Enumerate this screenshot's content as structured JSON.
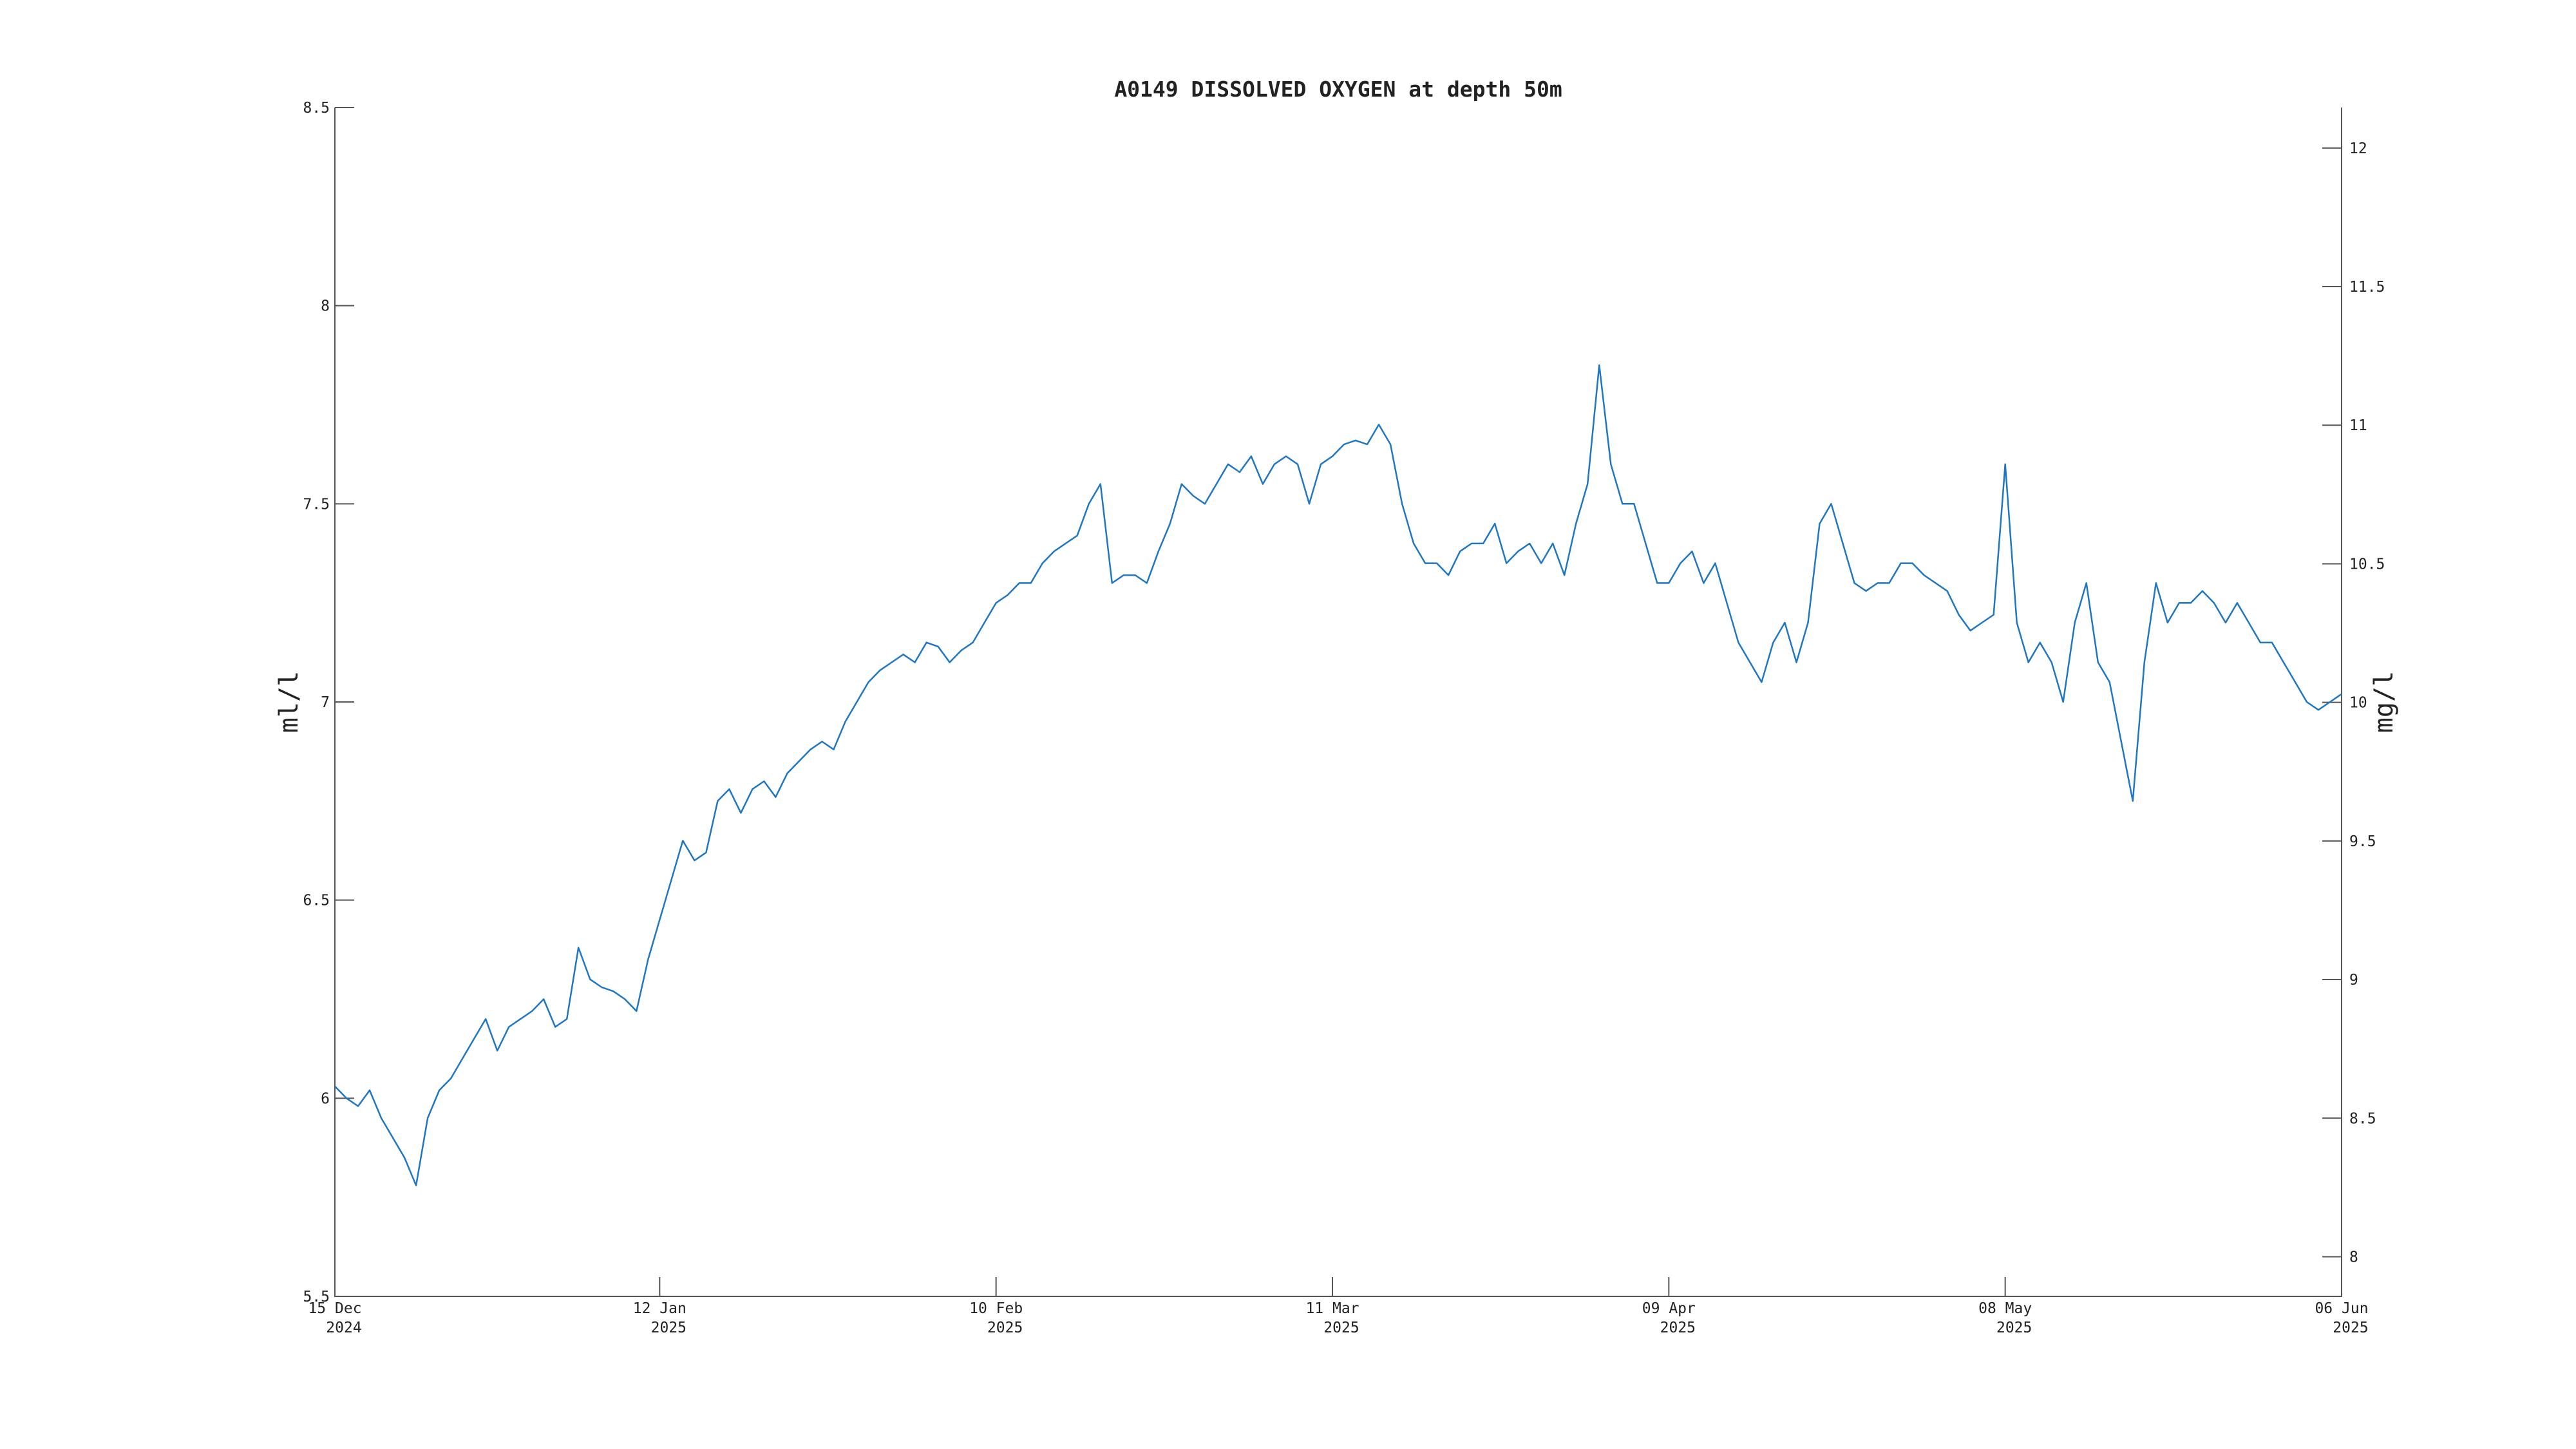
{
  "chart_data": {
    "type": "line",
    "title": "A0149 DISSOLVED OXYGEN at depth 50m",
    "ylabel": "ml/l",
    "y2label": "mg/l",
    "color": "#1f77c4",
    "xlim": [
      "2024-12-15",
      "2025-06-06"
    ],
    "xticks": [
      {
        "value": "2024-12-15",
        "label": [
          "15 Dec",
          "2024"
        ]
      },
      {
        "value": "2025-01-12",
        "label": [
          "12 Jan",
          "2025"
        ]
      },
      {
        "value": "2025-02-10",
        "label": [
          "10 Feb",
          "2025"
        ]
      },
      {
        "value": "2025-03-11",
        "label": [
          "11 Mar",
          "2025"
        ]
      },
      {
        "value": "2025-04-09",
        "label": [
          "09 Apr",
          "2025"
        ]
      },
      {
        "value": "2025-05-08",
        "label": [
          "08 May",
          "2025"
        ]
      },
      {
        "value": "2025-06-06",
        "label": [
          "06 Jun",
          "2025"
        ]
      }
    ],
    "ylim": [
      5.5,
      8.5
    ],
    "yticks": [
      5.5,
      6,
      6.5,
      7,
      7.5,
      8,
      8.5
    ],
    "y2lim": [
      7.857,
      12.146
    ],
    "y2ticks": [
      8,
      8.5,
      9,
      9.5,
      10,
      10.5,
      11,
      11.5,
      12
    ],
    "x": [
      "2024-12-15",
      "2024-12-16",
      "2024-12-17",
      "2024-12-18",
      "2024-12-19",
      "2024-12-20",
      "2024-12-21",
      "2024-12-22",
      "2024-12-23",
      "2024-12-24",
      "2024-12-25",
      "2024-12-26",
      "2024-12-27",
      "2024-12-28",
      "2024-12-29",
      "2024-12-30",
      "2024-12-31",
      "2025-01-01",
      "2025-01-02",
      "2025-01-03",
      "2025-01-04",
      "2025-01-05",
      "2025-01-06",
      "2025-01-07",
      "2025-01-08",
      "2025-01-09",
      "2025-01-10",
      "2025-01-11",
      "2025-01-12",
      "2025-01-13",
      "2025-01-14",
      "2025-01-15",
      "2025-01-16",
      "2025-01-17",
      "2025-01-18",
      "2025-01-19",
      "2025-01-20",
      "2025-01-21",
      "2025-01-22",
      "2025-01-23",
      "2025-01-24",
      "2025-01-25",
      "2025-01-26",
      "2025-01-27",
      "2025-01-28",
      "2025-01-29",
      "2025-01-30",
      "2025-01-31",
      "2025-02-01",
      "2025-02-02",
      "2025-02-03",
      "2025-02-04",
      "2025-02-05",
      "2025-02-06",
      "2025-02-07",
      "2025-02-08",
      "2025-02-09",
      "2025-02-10",
      "2025-02-11",
      "2025-02-12",
      "2025-02-13",
      "2025-02-14",
      "2025-02-15",
      "2025-02-16",
      "2025-02-17",
      "2025-02-18",
      "2025-02-19",
      "2025-02-20",
      "2025-02-21",
      "2025-02-22",
      "2025-02-23",
      "2025-02-24",
      "2025-02-25",
      "2025-02-26",
      "2025-02-27",
      "2025-02-28",
      "2025-03-01",
      "2025-03-02",
      "2025-03-03",
      "2025-03-04",
      "2025-03-05",
      "2025-03-06",
      "2025-03-07",
      "2025-03-08",
      "2025-03-09",
      "2025-03-10",
      "2025-03-11",
      "2025-03-12",
      "2025-03-13",
      "2025-03-14",
      "2025-03-15",
      "2025-03-16",
      "2025-03-17",
      "2025-03-18",
      "2025-03-19",
      "2025-03-20",
      "2025-03-21",
      "2025-03-22",
      "2025-03-23",
      "2025-03-24",
      "2025-03-25",
      "2025-03-26",
      "2025-03-27",
      "2025-03-28",
      "2025-03-29",
      "2025-03-30",
      "2025-03-31",
      "2025-04-01",
      "2025-04-02",
      "2025-04-03",
      "2025-04-04",
      "2025-04-05",
      "2025-04-06",
      "2025-04-07",
      "2025-04-08",
      "2025-04-09",
      "2025-04-10",
      "2025-04-11",
      "2025-04-12",
      "2025-04-13",
      "2025-04-14",
      "2025-04-15",
      "2025-04-16",
      "2025-04-17",
      "2025-04-18",
      "2025-04-19",
      "2025-04-20",
      "2025-04-21",
      "2025-04-22",
      "2025-04-23",
      "2025-04-24",
      "2025-04-25",
      "2025-04-26",
      "2025-04-27",
      "2025-04-28",
      "2025-04-29",
      "2025-04-30",
      "2025-05-01",
      "2025-05-02",
      "2025-05-03",
      "2025-05-04",
      "2025-05-05",
      "2025-05-06",
      "2025-05-07",
      "2025-05-08",
      "2025-05-09",
      "2025-05-10",
      "2025-05-11",
      "2025-05-12",
      "2025-05-13",
      "2025-05-14",
      "2025-05-15",
      "2025-05-16",
      "2025-05-17",
      "2025-05-18",
      "2025-05-19",
      "2025-05-20",
      "2025-05-21",
      "2025-05-22",
      "2025-05-23",
      "2025-05-24",
      "2025-05-25",
      "2025-05-26",
      "2025-05-27",
      "2025-05-28",
      "2025-05-29",
      "2025-05-30",
      "2025-05-31",
      "2025-06-01",
      "2025-06-02",
      "2025-06-03",
      "2025-06-04",
      "2025-06-05",
      "2025-06-06"
    ],
    "values": [
      6.03,
      6.0,
      5.98,
      6.02,
      5.95,
      5.9,
      5.85,
      5.78,
      5.95,
      6.02,
      6.05,
      6.1,
      6.15,
      6.2,
      6.12,
      6.18,
      6.2,
      6.22,
      6.25,
      6.18,
      6.2,
      6.38,
      6.3,
      6.28,
      6.27,
      6.25,
      6.22,
      6.35,
      6.45,
      6.55,
      6.65,
      6.6,
      6.62,
      6.75,
      6.78,
      6.72,
      6.78,
      6.8,
      6.76,
      6.82,
      6.85,
      6.88,
      6.9,
      6.88,
      6.95,
      7.0,
      7.05,
      7.08,
      7.1,
      7.12,
      7.1,
      7.15,
      7.14,
      7.1,
      7.13,
      7.15,
      7.2,
      7.25,
      7.27,
      7.3,
      7.3,
      7.35,
      7.38,
      7.4,
      7.42,
      7.5,
      7.55,
      7.3,
      7.32,
      7.32,
      7.3,
      7.38,
      7.45,
      7.55,
      7.52,
      7.5,
      7.55,
      7.6,
      7.58,
      7.62,
      7.55,
      7.6,
      7.62,
      7.6,
      7.5,
      7.6,
      7.62,
      7.65,
      7.66,
      7.65,
      7.7,
      7.65,
      7.5,
      7.4,
      7.35,
      7.35,
      7.32,
      7.38,
      7.4,
      7.4,
      7.45,
      7.35,
      7.38,
      7.4,
      7.35,
      7.4,
      7.32,
      7.45,
      7.55,
      7.85,
      7.6,
      7.5,
      7.5,
      7.4,
      7.3,
      7.3,
      7.35,
      7.38,
      7.3,
      7.35,
      7.25,
      7.15,
      7.1,
      7.05,
      7.15,
      7.2,
      7.1,
      7.2,
      7.45,
      7.5,
      7.4,
      7.3,
      7.28,
      7.3,
      7.3,
      7.35,
      7.35,
      7.32,
      7.3,
      7.28,
      7.22,
      7.18,
      7.2,
      7.22,
      7.6,
      7.2,
      7.1,
      7.15,
      7.1,
      7.0,
      7.2,
      7.3,
      7.1,
      7.05,
      6.9,
      6.75,
      7.1,
      7.3,
      7.2,
      7.25,
      7.25,
      7.28,
      7.25,
      7.2,
      7.25,
      7.2,
      7.15,
      7.15,
      7.1,
      7.05,
      7.0,
      6.98,
      7.0,
      7.02
    ]
  }
}
